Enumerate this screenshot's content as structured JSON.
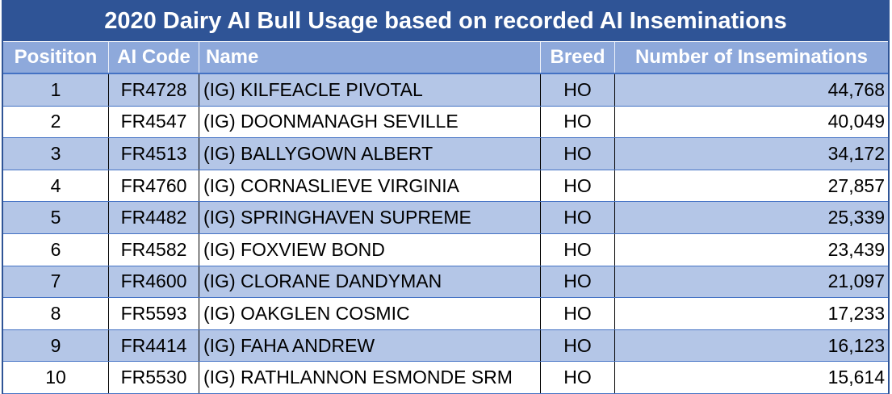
{
  "title": "2020 Dairy AI Bull Usage based on recorded AI Inseminations",
  "table": {
    "headers": [
      "Posititon",
      "AI Code",
      "Name",
      "Breed",
      "Number of Inseminations"
    ],
    "rows": [
      {
        "position": "1",
        "ai_code": "FR4728",
        "name": "(IG) KILFEACLE PIVOTAL",
        "breed": "HO",
        "inseminations": "44,768"
      },
      {
        "position": "2",
        "ai_code": "FR4547",
        "name": "(IG) DOONMANAGH SEVILLE",
        "breed": "HO",
        "inseminations": "40,049"
      },
      {
        "position": "3",
        "ai_code": "FR4513",
        "name": "(IG) BALLYGOWN ALBERT",
        "breed": "HO",
        "inseminations": "34,172"
      },
      {
        "position": "4",
        "ai_code": "FR4760",
        "name": "(IG) CORNASLIEVE VIRGINIA",
        "breed": "HO",
        "inseminations": "27,857"
      },
      {
        "position": "5",
        "ai_code": "FR4482",
        "name": "(IG) SPRINGHAVEN SUPREME",
        "breed": "HO",
        "inseminations": "25,339"
      },
      {
        "position": "6",
        "ai_code": "FR4582",
        "name": "(IG) FOXVIEW BOND",
        "breed": "HO",
        "inseminations": "23,439"
      },
      {
        "position": "7",
        "ai_code": "FR4600",
        "name": "(IG) CLORANE DANDYMAN",
        "breed": "HO",
        "inseminations": "21,097"
      },
      {
        "position": "8",
        "ai_code": "FR5593",
        "name": "(IG) OAKGLEN COSMIC",
        "breed": "HO",
        "inseminations": "17,233"
      },
      {
        "position": "9",
        "ai_code": "FR4414",
        "name": "(IG) FAHA ANDREW",
        "breed": "HO",
        "inseminations": "16,123"
      },
      {
        "position": "10",
        "ai_code": "FR5530",
        "name": "(IG) RATHLANNON ESMONDE SRM",
        "breed": "HO",
        "inseminations": "15,614"
      }
    ]
  },
  "colors": {
    "title_bg": "#2F5496",
    "header_bg": "#8EA9DB",
    "shaded_row_bg": "#B4C6E7",
    "row_line": "#4472C4",
    "outer_border": "#2F5496",
    "text": "#000000"
  }
}
